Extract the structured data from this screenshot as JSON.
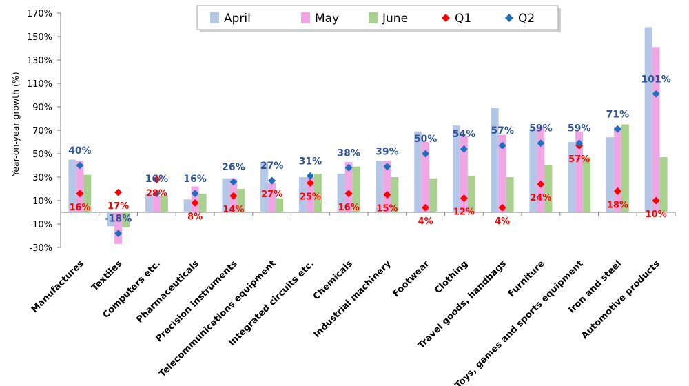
{
  "chart_data": {
    "type": "bar",
    "ylabel": "Year-on-year growth (%)",
    "ylim": [
      -30,
      170
    ],
    "yticks": [
      -30,
      -10,
      10,
      30,
      50,
      70,
      90,
      110,
      130,
      150,
      170
    ],
    "ytick_labels": [
      "-30%",
      "-10%",
      "10%",
      "30%",
      "50%",
      "70%",
      "90%",
      "110%",
      "130%",
      "150%",
      "170%"
    ],
    "grid": false,
    "legend_position": "top",
    "categories": [
      "Manufactures",
      "Textiles",
      "Computers etc.",
      "Pharmaceuticals",
      "Precision instruments",
      "Telecommunications equipment",
      "Integrated circuits etc.",
      "Chemicals",
      "Industrial machinery",
      "Footwear",
      "Clothing",
      "Travel goods, handbags",
      "Furniture",
      "Toys, games and sports equipment",
      "Iron and steel",
      "Automotive products"
    ],
    "series": [
      {
        "name": "April",
        "kind": "bar",
        "color": "#B4C7E7",
        "values": [
          45,
          -12,
          16,
          11,
          29,
          43,
          30,
          33,
          44,
          69,
          74,
          89,
          71,
          60,
          64,
          158
        ]
      },
      {
        "name": "May",
        "kind": "bar",
        "color": "#F0A6E4",
        "values": [
          44,
          -27,
          14,
          22,
          29,
          25,
          30,
          43,
          44,
          60,
          65,
          66,
          73,
          69,
          73,
          141
        ]
      },
      {
        "name": "June",
        "kind": "bar",
        "color": "#A9D18E",
        "values": [
          32,
          -13,
          14,
          16,
          20,
          12,
          33,
          39,
          30,
          29,
          31,
          30,
          40,
          47,
          75,
          47
        ]
      },
      {
        "name": "Q1",
        "kind": "marker",
        "color": "#FF0000",
        "values": [
          16,
          17,
          28,
          8,
          14,
          27,
          25,
          16,
          15,
          4,
          12,
          4,
          24,
          57,
          18,
          10
        ]
      },
      {
        "name": "Q2",
        "kind": "marker",
        "color": "#1F6FBF",
        "values": [
          40,
          -18,
          16,
          16,
          26,
          27,
          31,
          38,
          39,
          50,
          54,
          57,
          59,
          59,
          71,
          101
        ]
      }
    ],
    "q1_labels": [
      "16%",
      "17%",
      "28%",
      "8%",
      "14%",
      "27%",
      "25%",
      "16%",
      "15%",
      "4%",
      "12%",
      "4%",
      "24%",
      "57%",
      "18%",
      "10%"
    ],
    "q2_labels": [
      "40%",
      "-18%",
      "16%",
      "16%",
      "26%",
      "27%",
      "31%",
      "38%",
      "39%",
      "50%",
      "54%",
      "57%",
      "59%",
      "59%",
      "71%",
      "101%"
    ]
  }
}
